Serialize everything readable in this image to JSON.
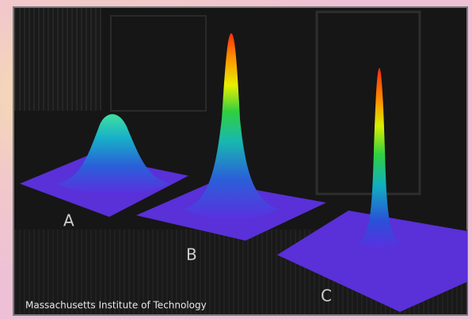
{
  "image": {
    "peaks": [
      {
        "label": "A"
      },
      {
        "label": "B"
      },
      {
        "label": "C"
      }
    ],
    "credit": "Massachusetts Institute of Technology"
  }
}
